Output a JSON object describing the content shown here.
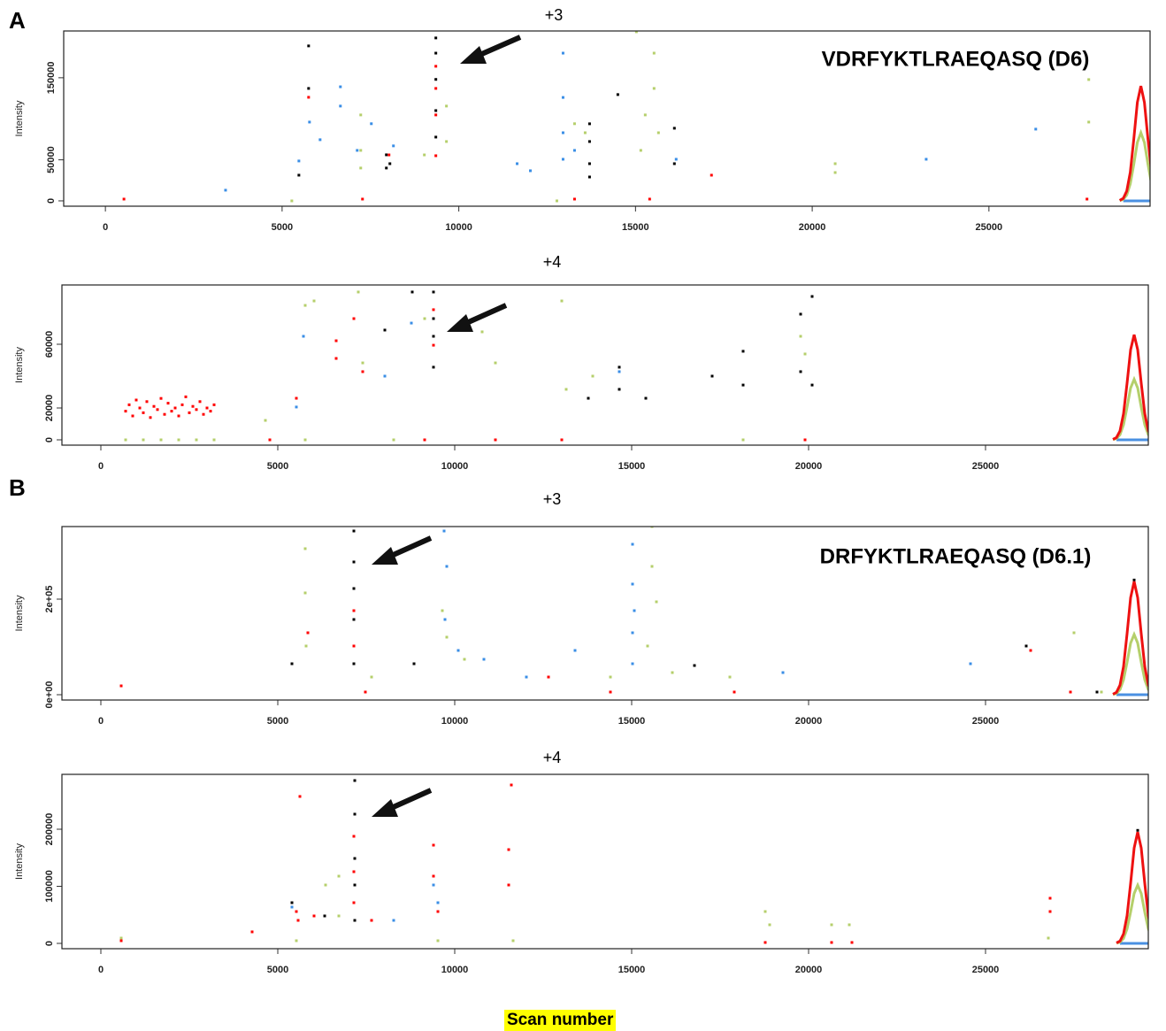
{
  "labels": {
    "A": "A",
    "B": "B"
  },
  "x_axis_title": "Scan number",
  "chart_data": [
    {
      "type": "scatter",
      "title": "+3",
      "annotation": "VDRFYKTLRAEQASQ (D6)",
      "y_label": "Intensity",
      "xlim": [
        -1180,
        29560
      ],
      "ylim": [
        -6500,
        207000
      ],
      "xticks": [
        0,
        5000,
        10000,
        15000,
        20000,
        25000
      ],
      "yticks": [
        0,
        50000,
        150000
      ],
      "series": [
        {
          "color": "#000000",
          "x": [
            5750,
            5750,
            5475,
            7950,
            7950,
            9350,
            9350,
            9350,
            9350,
            9350,
            13700,
            13700,
            13700,
            13700,
            14500,
            16100,
            16100,
            8050
          ],
          "values": [
            188800,
            137000,
            31300,
            56100,
            40000,
            198500,
            180000,
            148000,
            110000,
            77700,
            93900,
            72300,
            45300,
            29100,
            129500,
            88500,
            45300,
            45300
          ]
        },
        {
          "color": "#ff0000",
          "x": [
            525,
            5750,
            9350,
            9350,
            9350,
            9350,
            17150,
            27775,
            8025,
            13275,
            15400,
            7275
          ],
          "values": [
            2160,
            126200,
            164000,
            137000,
            104700,
            55000,
            31300,
            2160,
            56000,
            2160,
            2160,
            2160
          ]
        },
        {
          "color": "#3a8ee6",
          "x": [
            3400,
            5475,
            5775,
            6650,
            6650,
            6075,
            7525,
            8150,
            11650,
            12025,
            12950,
            12950,
            12950,
            12950,
            13275,
            26325,
            23225,
            16150,
            7125
          ],
          "values": [
            13000,
            48600,
            96000,
            139000,
            115500,
            74500,
            94000,
            67000,
            45300,
            36700,
            180000,
            126000,
            83000,
            50700,
            61500,
            87400,
            50700,
            50700,
            61500
          ]
        },
        {
          "color": "#b5cf6b",
          "x": [
            7225,
            7225,
            7225,
            9650,
            9650,
            13575,
            13275,
            15525,
            15525,
            15275,
            15650,
            15150,
            20650,
            20650,
            27825,
            27825,
            15025,
            9025,
            12775,
            5275
          ],
          "values": [
            104700,
            61500,
            40000,
            115500,
            72300,
            83000,
            94000,
            180000,
            137000,
            104700,
            83000,
            61500,
            45300,
            34500,
            147800,
            96000,
            206000,
            56000,
            0,
            0
          ]
        },
        {
          "type": "line",
          "color": "#4a90e2",
          "x": [
            28800,
            29800
          ],
          "values": [
            0,
            0
          ]
        },
        {
          "type": "line",
          "color": "#b5cf6b",
          "x": [
            28700,
            28800,
            28900,
            29000,
            29100,
            29200,
            29300,
            29400,
            29500,
            29600,
            29700,
            29800,
            29900
          ],
          "values": [
            332,
            1743,
            7055,
            20667,
            44737,
            71131,
            83000,
            71131,
            44737,
            20667,
            7055,
            1743,
            332
          ]
        },
        {
          "type": "line",
          "color": "#ee1111",
          "x": [
            28700,
            28800,
            28900,
            29000,
            29100,
            29200,
            29300,
            29400,
            29500,
            29600,
            29700,
            29800,
            29900
          ],
          "values": [
            560,
            2940,
            11900,
            34860,
            75460,
            119980,
            140000,
            119980,
            75460,
            34860,
            11900,
            2940,
            560
          ]
        }
      ]
    },
    {
      "type": "scatter",
      "title": "+4",
      "y_label": "Intensity",
      "xlim": [
        -1100,
        29600
      ],
      "ylim": [
        -3333,
        97222
      ],
      "xticks": [
        0,
        5000,
        10000,
        15000,
        20000,
        25000
      ],
      "yticks": [
        0,
        20000,
        60000
      ],
      "series": [
        {
          "color": "#000000",
          "x": [
            8800,
            9400,
            9400,
            9400,
            9400,
            8025,
            14650,
            14650,
            13775,
            15400,
            17275,
            18150,
            18150,
            19775,
            19775,
            20100,
            20100
          ],
          "values": [
            92800,
            92800,
            76100,
            65000,
            45600,
            68900,
            45600,
            31700,
            26100,
            26100,
            40000,
            55600,
            34400,
            78900,
            42800,
            90000,
            34400
          ]
        },
        {
          "color": "#ff0000",
          "x": [
            700,
            800,
            900,
            1000,
            1100,
            1200,
            1300,
            1400,
            1500,
            1600,
            1700,
            1800,
            1900,
            2000,
            2100,
            2200,
            2300,
            2400,
            2500,
            2600,
            2700,
            2800,
            2900,
            3000,
            3100,
            3200,
            6650,
            6650,
            7150,
            7400,
            9400,
            9400,
            5525,
            4775,
            11150,
            13025,
            19900,
            9150
          ],
          "values": [
            18000,
            22000,
            15000,
            25000,
            20000,
            17000,
            24000,
            14000,
            21000,
            19000,
            26000,
            16000,
            23000,
            18000,
            20000,
            15000,
            22000,
            27000,
            17000,
            21000,
            19000,
            24000,
            16000,
            20000,
            18000,
            22000,
            62200,
            51100,
            76100,
            42800,
            59400,
            81700,
            26100,
            0,
            0,
            0,
            0,
            0
          ]
        },
        {
          "color": "#3a8ee6",
          "x": [
            5725,
            8025,
            5525,
            8775,
            14650
          ],
          "values": [
            65000,
            40000,
            20600,
            73300,
            42800
          ]
        },
        {
          "color": "#b5cf6b",
          "x": [
            700,
            1200,
            1700,
            2200,
            2700,
            3200,
            5775,
            6025,
            7275,
            7400,
            9150,
            10775,
            11150,
            13025,
            13150,
            13900,
            19775,
            19900,
            4650,
            5775,
            8275,
            18150
          ],
          "values": [
            0,
            0,
            0,
            0,
            0,
            0,
            84400,
            87200,
            92800,
            48300,
            76100,
            67800,
            48300,
            87200,
            31700,
            40000,
            65000,
            53900,
            12200,
            0,
            0,
            0
          ]
        },
        {
          "type": "line",
          "color": "#4a90e2",
          "x": [
            28700,
            29700
          ],
          "values": [
            0,
            0
          ]
        },
        {
          "type": "line",
          "color": "#b5cf6b",
          "x": [
            28600,
            28700,
            28800,
            28900,
            29000,
            29100,
            29200,
            29300,
            29400,
            29500,
            29600,
            29700,
            29800
          ],
          "values": [
            152,
            798,
            3230,
            9462,
            20482,
            32566,
            38000,
            32566,
            20482,
            9462,
            3230,
            798,
            152
          ]
        },
        {
          "type": "line",
          "color": "#ee1111",
          "x": [
            28600,
            28700,
            28800,
            28900,
            29000,
            29100,
            29200,
            29300,
            29400,
            29500,
            29600,
            29700,
            29800
          ],
          "values": [
            264,
            1386,
            5610,
            16434,
            35574,
            56562,
            66000,
            56562,
            35574,
            16434,
            5610,
            1386,
            264
          ]
        }
      ]
    },
    {
      "type": "scatter",
      "title": "+3",
      "annotation": "DRFYKTLRAEQASQ (D6.1)",
      "y_label": "Intensity",
      "xlim": [
        -1100,
        29600
      ],
      "ylim": [
        -11111,
        351852
      ],
      "xticks": [
        0,
        5000,
        10000,
        15000,
        20000,
        25000
      ],
      "yticks": [
        {
          "value": 0,
          "label": "0e+00"
        },
        {
          "value": 200000,
          "label": "2e+05"
        }
      ],
      "series": [
        {
          "color": "#000000",
          "x": [
            7150,
            7150,
            7150,
            7150,
            7150,
            5400,
            8850,
            16775,
            26150,
            28150,
            29200
          ],
          "values": [
            342600,
            277800,
            222200,
            157400,
            64800,
            64800,
            64800,
            61100,
            101900,
            5600,
            240000
          ]
        },
        {
          "color": "#ff0000",
          "x": [
            575,
            7150,
            7150,
            5850,
            26275,
            27400,
            12650,
            14400,
            17900,
            7475
          ],
          "values": [
            18500,
            175900,
            101900,
            129600,
            92600,
            5600,
            37000,
            5600,
            5600,
            5600
          ]
        },
        {
          "color": "#3a8ee6",
          "x": [
            9700,
            9775,
            9725,
            10100,
            10825,
            12025,
            13400,
            15025,
            15025,
            15025,
            15025,
            15075,
            19275,
            24575
          ],
          "values": [
            342600,
            268500,
            157400,
            92600,
            74100,
            37000,
            92600,
            314800,
            231500,
            129600,
            64800,
            175900,
            46300,
            64800
          ]
        },
        {
          "color": "#b5cf6b",
          "x": [
            5775,
            5775,
            5800,
            9650,
            9775,
            10275,
            15575,
            15575,
            15700,
            15450,
            16150,
            17775,
            14400,
            27500,
            28275,
            7650
          ],
          "values": [
            305600,
            213000,
            101900,
            175900,
            120400,
            74100,
            351900,
            268500,
            194400,
            101900,
            46300,
            37000,
            37000,
            129600,
            5600,
            37000
          ]
        },
        {
          "type": "line",
          "color": "#4a90e2",
          "x": [
            28700,
            29700
          ],
          "values": [
            0,
            0
          ]
        },
        {
          "type": "line",
          "color": "#b5cf6b",
          "x": [
            28600,
            28700,
            28800,
            28900,
            29000,
            29100,
            29200,
            29300,
            29400,
            29500,
            29600,
            29700,
            29800
          ],
          "values": [
            504,
            2646,
            10710,
            31374,
            67914,
            107982,
            126000,
            107982,
            67914,
            31374,
            10710,
            2646,
            504
          ]
        },
        {
          "type": "line",
          "color": "#ee1111",
          "x": [
            28600,
            28700,
            28800,
            28900,
            29000,
            29100,
            29200,
            29300,
            29400,
            29500,
            29600,
            29700,
            29800
          ],
          "values": [
            948,
            4977,
            20145,
            59013,
            127743,
            203109,
            237000,
            203109,
            127743,
            59013,
            20145,
            4977,
            948
          ]
        }
      ]
    },
    {
      "type": "scatter",
      "title": "+4",
      "y_label": "Intensity",
      "xlim": [
        -1100,
        29600
      ],
      "ylim": [
        -9302,
        296124
      ],
      "xticks": [
        0,
        5000,
        10000,
        15000,
        20000,
        25000
      ],
      "yticks": [
        0,
        100000,
        200000
      ],
      "series": [
        {
          "color": "#000000",
          "x": [
            7175,
            7175,
            7175,
            7175,
            7175,
            6325,
            5400,
            29300
          ],
          "values": [
            285300,
            226400,
            148800,
            102300,
            40300,
            48100,
            71300,
            198000
          ]
        },
        {
          "color": "#ff0000",
          "x": [
            575,
            4275,
            5625,
            5575,
            5525,
            7150,
            7150,
            7150,
            7650,
            9400,
            9400,
            9525,
            11600,
            11525,
            11525,
            26825,
            26825,
            6025,
            18775,
            21225,
            20650
          ],
          "values": [
            4700,
            20200,
            257400,
            40300,
            55800,
            187600,
            125600,
            71300,
            40300,
            172100,
            117800,
            55800,
            277500,
            164300,
            102300,
            79100,
            55800,
            48100,
            1600,
            1600,
            1600
          ]
        },
        {
          "color": "#3a8ee6",
          "x": [
            9400,
            8275,
            5400,
            9525
          ],
          "values": [
            102300,
            40300,
            63600,
            71300
          ]
        },
        {
          "color": "#b5cf6b",
          "x": [
            6350,
            6725,
            6725,
            18775,
            18900,
            20650,
            21150,
            575,
            5525,
            9525,
            11650,
            26775
          ],
          "values": [
            102300,
            117800,
            48100,
            55800,
            32600,
            32600,
            32600,
            9300,
            4700,
            4700,
            4700,
            9300
          ]
        },
        {
          "type": "line",
          "color": "#4a90e2",
          "x": [
            28800,
            29800
          ],
          "values": [
            0,
            0
          ]
        },
        {
          "type": "line",
          "color": "#b5cf6b",
          "x": [
            28700,
            28800,
            28900,
            29000,
            29100,
            29200,
            29300,
            29400,
            29500,
            29600,
            29700,
            29800,
            29900
          ],
          "values": [
            408,
            2142,
            8670,
            25398,
            54978,
            87414,
            102000,
            87414,
            54978,
            25398,
            8670,
            2142,
            408
          ]
        },
        {
          "type": "line",
          "color": "#ee1111",
          "x": [
            28700,
            28800,
            28900,
            29000,
            29100,
            29200,
            29300,
            29400,
            29500,
            29600,
            29700,
            29800,
            29900
          ],
          "values": [
            780,
            4095,
            16575,
            48555,
            105105,
            167115,
            195000,
            167115,
            105105,
            48555,
            16575,
            4095,
            780
          ]
        }
      ]
    }
  ]
}
